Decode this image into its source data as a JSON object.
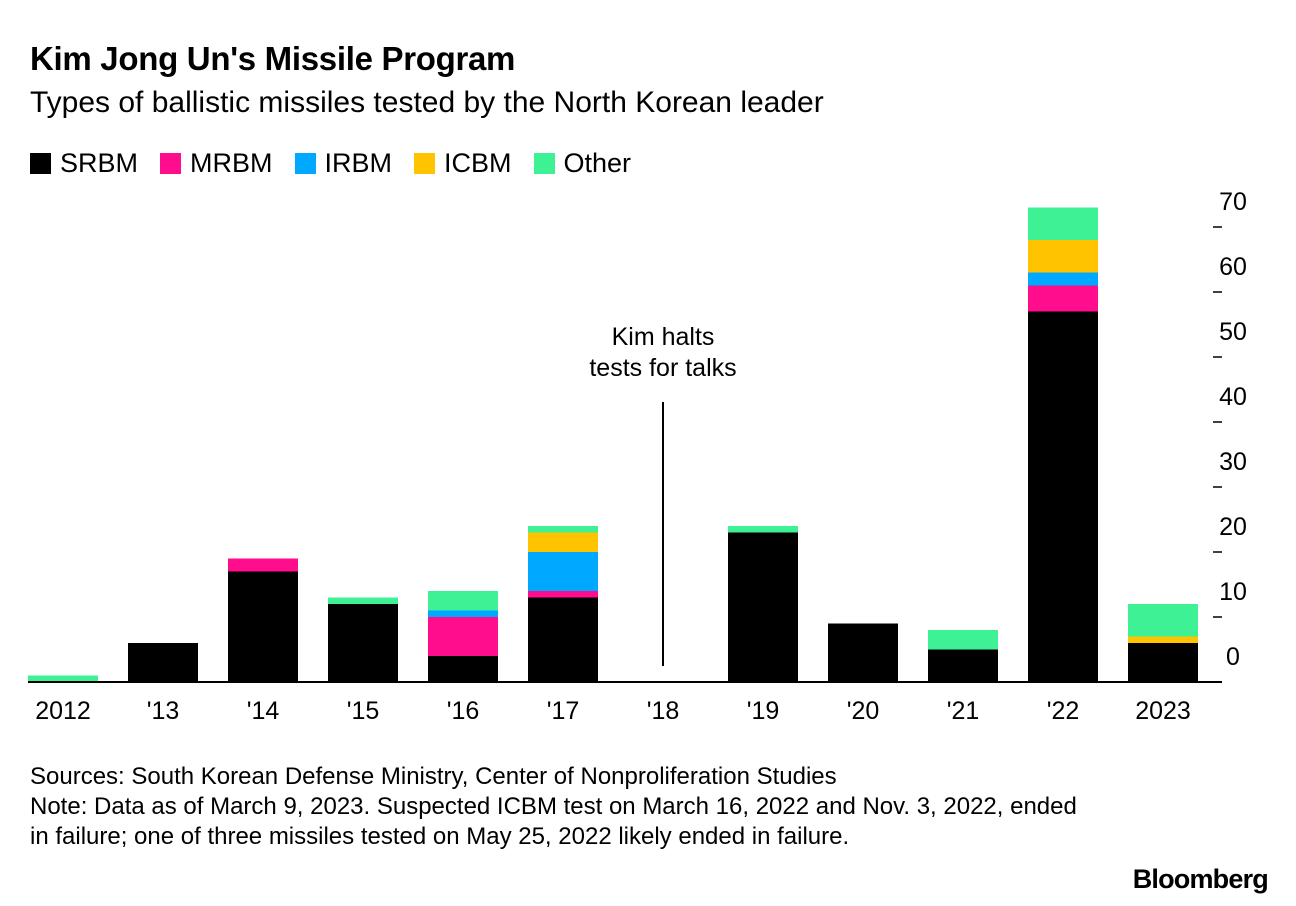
{
  "title": "Kim Jong Un's Missile Program",
  "subtitle": "Types of ballistic missiles tested by the North Korean leader",
  "legend": [
    {
      "label": "SRBM",
      "color": "#000000"
    },
    {
      "label": "MRBM",
      "color": "#ff0d8c"
    },
    {
      "label": "IRBM",
      "color": "#00a8ff"
    },
    {
      "label": "ICBM",
      "color": "#ffc300"
    },
    {
      "label": "Other",
      "color": "#3ff195"
    }
  ],
  "chart_data": {
    "type": "bar",
    "stacked": true,
    "categories": [
      "2012",
      "'13",
      "'14",
      "'15",
      "'16",
      "'17",
      "'18",
      "'19",
      "'20",
      "'21",
      "'22",
      "2023"
    ],
    "series": [
      {
        "name": "SRBM",
        "color": "#000000",
        "values": [
          0,
          6,
          17,
          12,
          4,
          13,
          0,
          23,
          9,
          5,
          57,
          6
        ]
      },
      {
        "name": "MRBM",
        "color": "#ff0d8c",
        "values": [
          0,
          0,
          2,
          0,
          6,
          1,
          0,
          0,
          0,
          0,
          4,
          0
        ]
      },
      {
        "name": "IRBM",
        "color": "#00a8ff",
        "values": [
          0,
          0,
          0,
          0,
          1,
          6,
          0,
          0,
          0,
          0,
          2,
          0
        ]
      },
      {
        "name": "ICBM",
        "color": "#ffc300",
        "values": [
          0,
          0,
          0,
          0,
          0,
          3,
          0,
          0,
          0,
          0,
          5,
          1
        ]
      },
      {
        "name": "Other",
        "color": "#3ff195",
        "values": [
          1,
          0,
          0,
          1,
          3,
          1,
          0,
          1,
          0,
          3,
          5,
          5
        ]
      }
    ],
    "ylim": [
      0,
      73
    ],
    "yticks": [
      0,
      10,
      20,
      30,
      40,
      50,
      60,
      70
    ],
    "axis_position": "right",
    "annotation": {
      "lines": [
        "Kim halts",
        "tests for talks"
      ],
      "category": "'18"
    }
  },
  "sources": "Sources: South Korean Defense Ministry, Center of Nonproliferation Studies",
  "note": "Note: Data as of March 9, 2023. Suspected ICBM test on March 16, 2022 and Nov. 3, 2022, ended in failure; one of three missiles tested on May 25, 2022 likely ended in failure.",
  "brand": "Bloomberg"
}
